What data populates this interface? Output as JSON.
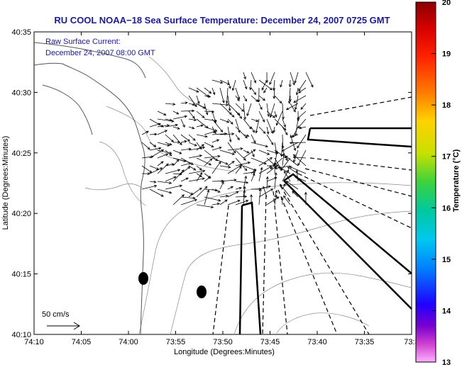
{
  "chart_data": {
    "type": "vector-field",
    "title": "RU COOL  NOAA−18  Sea Surface Temperature:  December 24, 2007 0725 GMT",
    "annotation_lines": [
      "Raw Surface Current:",
      "December 24, 2007 08:00 GMT"
    ],
    "xlabel": "Longitude (Degrees:Minutes)",
    "ylabel": "Latitude (Degrees:Minutes)",
    "x_ticks": [
      "74:10",
      "74:05",
      "74:00",
      "73:55",
      "73:50",
      "73:45",
      "73:40",
      "73:35",
      "73:3"
    ],
    "y_ticks": [
      "40:35",
      "40:30",
      "40:25",
      "40:20",
      "40:15",
      "40:10"
    ],
    "xlim": [
      "74:10 W",
      "73:30 W"
    ],
    "ylim": [
      "40:10 N",
      "40:35 N"
    ],
    "scale_arrow_label": "50 cm/s",
    "colorbar": {
      "label": "Temperature (°C)",
      "range": [
        13,
        20
      ],
      "ticks": [
        "20",
        "19",
        "18",
        "17",
        "16",
        "15",
        "14",
        "13"
      ]
    },
    "palette": {
      "title": "#1a1a9c",
      "coast": "#707070",
      "vectors": "#000000"
    }
  }
}
